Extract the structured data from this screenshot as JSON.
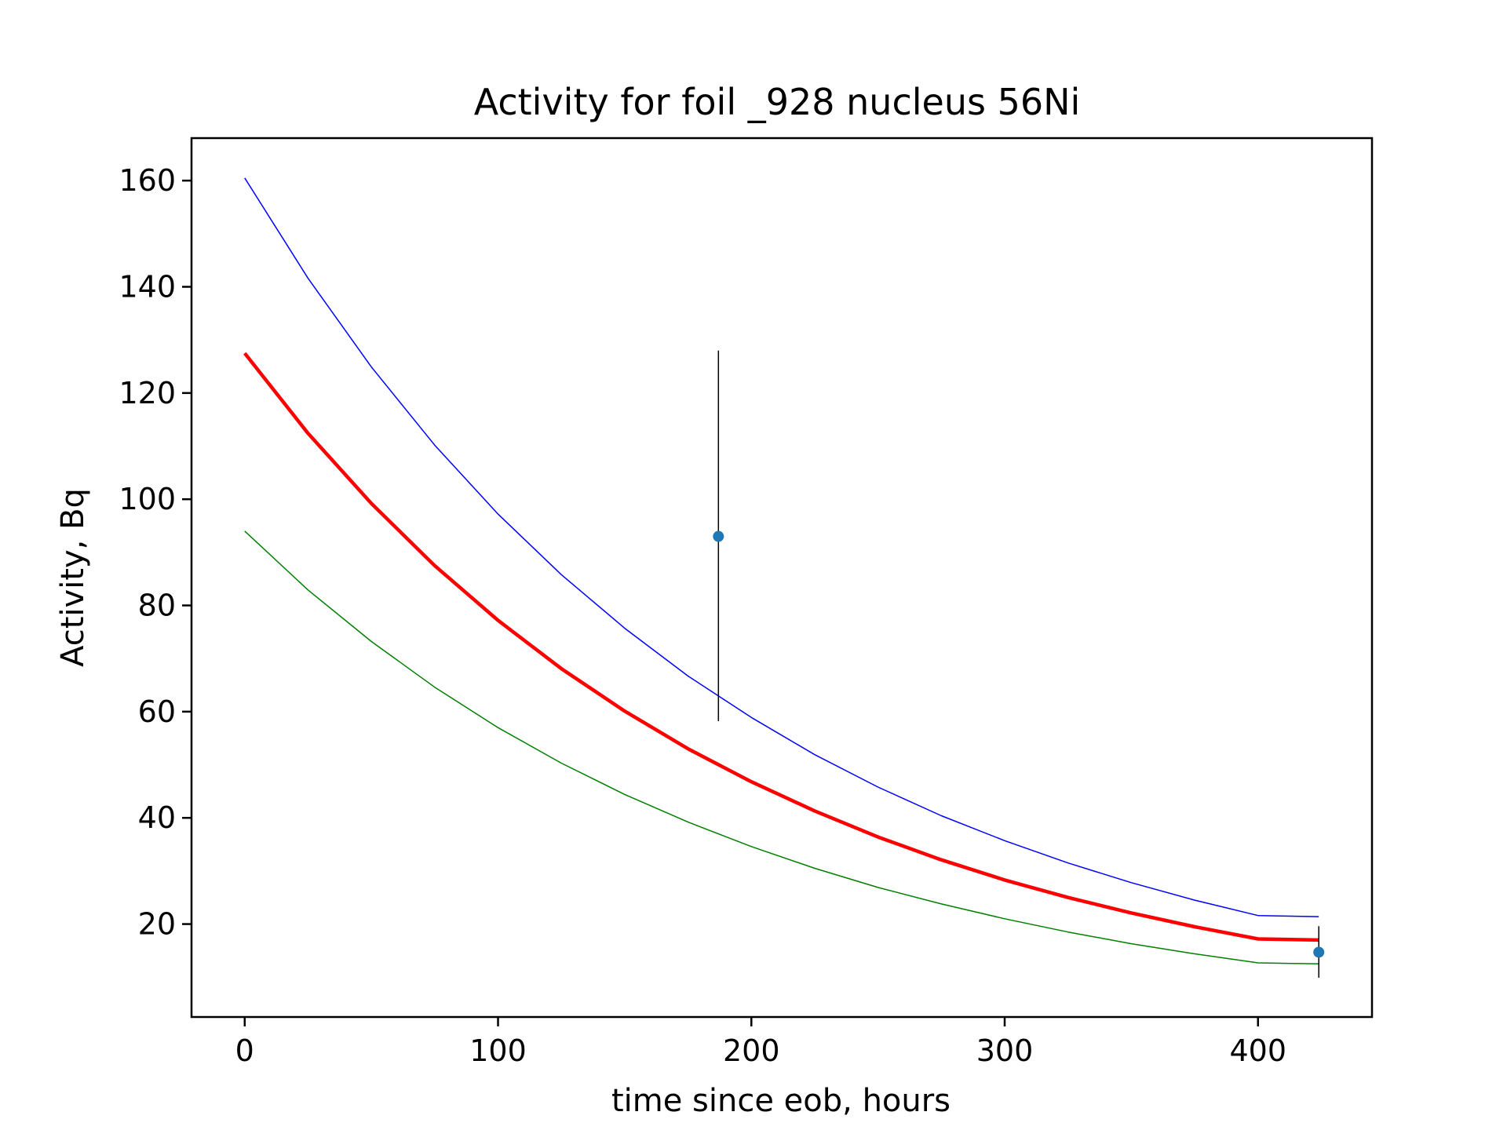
{
  "chart_data": {
    "type": "line",
    "title": "Activity for foil _928 nucleus 56Ni",
    "xlabel": "time since eob, hours",
    "ylabel": "Activity, Bq",
    "xlim": [
      -21,
      445
    ],
    "ylim": [
      2.5,
      168
    ],
    "xticks": [
      "0",
      "100",
      "200",
      "300",
      "400"
    ],
    "yticks": [
      "20",
      "40",
      "60",
      "80",
      "100",
      "120",
      "140",
      "160"
    ],
    "grid": false,
    "legend": "none",
    "series": [
      {
        "color": "#0000ff",
        "x": [
          0,
          25,
          50,
          75,
          100,
          125,
          150,
          175,
          200,
          225,
          250,
          275,
          300,
          325,
          350,
          375,
          400,
          424
        ],
        "y": [
          160.5,
          141.6,
          124.9,
          110.2,
          97.2,
          85.8,
          75.7,
          66.7,
          58.9,
          51.9,
          45.8,
          40.4,
          35.7,
          31.5,
          27.8,
          24.5,
          21.6,
          21.4
        ]
      },
      {
        "color": "#ff0000",
        "x": [
          0,
          25,
          50,
          75,
          100,
          125,
          150,
          175,
          200,
          225,
          250,
          275,
          300,
          325,
          350,
          375,
          400,
          424
        ],
        "y": [
          127.5,
          112.4,
          99.2,
          87.5,
          77.2,
          68.1,
          60.1,
          53.0,
          46.8,
          41.3,
          36.4,
          32.1,
          28.3,
          25.0,
          22.1,
          19.5,
          17.2,
          17.0
        ]
      },
      {
        "color": "#008000",
        "x": [
          0,
          25,
          50,
          75,
          100,
          125,
          150,
          175,
          200,
          225,
          250,
          275,
          300,
          325,
          350,
          375,
          400,
          424
        ],
        "y": [
          94.0,
          82.9,
          73.2,
          64.6,
          57.0,
          50.3,
          44.4,
          39.2,
          34.6,
          30.5,
          26.9,
          23.8,
          21.0,
          18.5,
          16.3,
          14.4,
          12.7,
          12.5
        ]
      }
    ],
    "points": {
      "color": "#1f77b4",
      "x": [
        187,
        424
      ],
      "y": [
        93,
        14.7
      ],
      "yerr_low": [
        58.2,
        9.9
      ],
      "yerr_high": [
        128,
        19.6
      ]
    }
  }
}
